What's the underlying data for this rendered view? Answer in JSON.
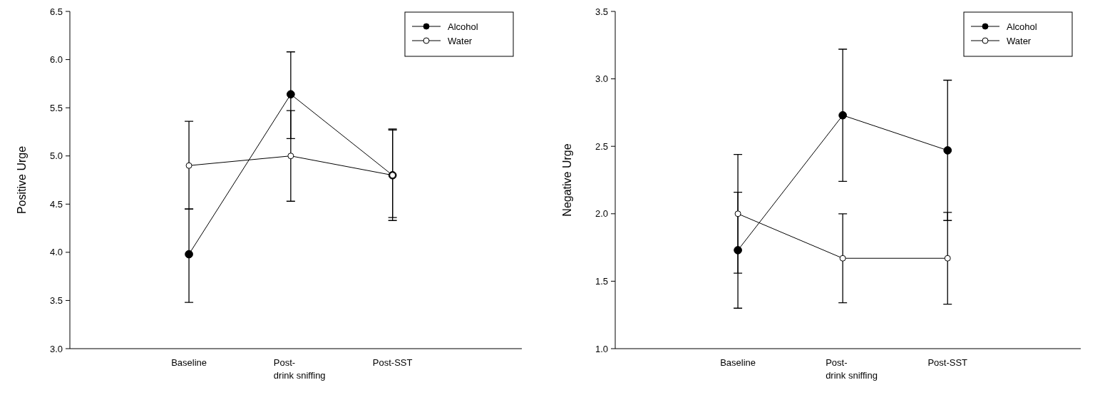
{
  "chart_data": [
    {
      "type": "line",
      "ylabel": "Positive Urge",
      "categories": [
        "Baseline",
        "Post-\ndrink sniffing",
        "Post-SST"
      ],
      "ylim": [
        3.0,
        6.5
      ],
      "yticks": [
        {
          "value": 3,
          "label": "3.0"
        },
        {
          "value": 3.5,
          "label": "3.5"
        },
        {
          "value": 4,
          "label": "4.0"
        },
        {
          "value": 4.5,
          "label": "4.5"
        },
        {
          "value": 5,
          "label": "5.0"
        },
        {
          "value": 5.5,
          "label": "5.5"
        },
        {
          "value": 6,
          "label": "6.0"
        },
        {
          "value": 6.5,
          "label": "6.5"
        }
      ],
      "legend": "top right",
      "marker": "circle",
      "grid": false,
      "series": [
        {
          "name": "Alcohol",
          "color": "#000000",
          "values": [
            3.98,
            5.64,
            4.8
          ],
          "errors": [
            [
              3.48,
              4.45
            ],
            [
              5.18,
              6.08
            ],
            [
              4.33,
              5.27
            ]
          ]
        },
        {
          "name": "Water",
          "color": "#ffffff",
          "values": [
            4.9,
            5.0,
            4.8
          ],
          "errors": [
            [
              4.45,
              5.36
            ],
            [
              4.53,
              5.47
            ],
            [
              4.36,
              5.28
            ]
          ]
        }
      ]
    },
    {
      "type": "line",
      "ylabel": "Negative Urge",
      "categories": [
        "Baseline",
        "Post-\ndrink sniffing",
        "Post-SST"
      ],
      "ylim": [
        1.0,
        3.5
      ],
      "yticks": [
        {
          "value": 1,
          "label": "1.0"
        },
        {
          "value": 1.5,
          "label": "1.5"
        },
        {
          "value": 2,
          "label": "2.0"
        },
        {
          "value": 2.5,
          "label": "2.5"
        },
        {
          "value": 3,
          "label": "3.0"
        },
        {
          "value": 3.5,
          "label": "3.5"
        }
      ],
      "legend": "top right",
      "marker": "circle",
      "grid": false,
      "series": [
        {
          "name": "Alcohol",
          "color": "#000000",
          "values": [
            1.73,
            2.73,
            2.47
          ],
          "errors": [
            [
              1.3,
              2.16
            ],
            [
              2.24,
              3.22
            ],
            [
              1.95,
              2.99
            ]
          ]
        },
        {
          "name": "Water",
          "color": "#ffffff",
          "values": [
            2.0,
            1.67,
            1.67
          ],
          "errors": [
            [
              1.56,
              2.44
            ],
            [
              1.34,
              2.0
            ],
            [
              1.33,
              2.01
            ]
          ]
        }
      ]
    }
  ]
}
